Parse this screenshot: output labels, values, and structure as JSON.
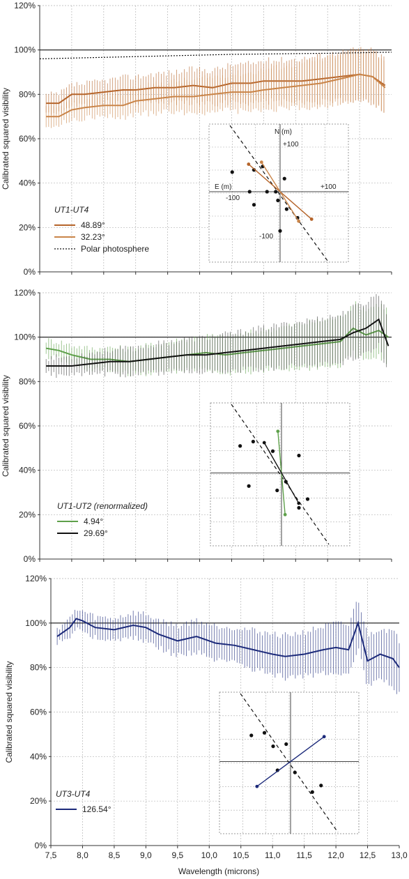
{
  "colors": {
    "orange_dark": "#b5642a",
    "orange_light": "#c98448",
    "green": "#5ea04a",
    "black": "#111111",
    "navy": "#1c2a7a",
    "grey_error": "#b8b8b8",
    "grid": "#b4b4b4"
  },
  "chart_data": [
    {
      "type": "line",
      "xlabel": "",
      "ylabel": "Calibrated squared visibility",
      "xlim": [
        7.5,
        13.0
      ],
      "ylim": [
        0,
        120
      ],
      "y_ticks": [
        "0%",
        "20%",
        "40%",
        "60%",
        "80%",
        "100%",
        "120%"
      ],
      "reference_line": 100,
      "legend_title": "UT1-UT4",
      "series": [
        {
          "name": "48.89°",
          "color": "#b5642a",
          "x": [
            7.6,
            7.8,
            8.0,
            8.2,
            8.5,
            8.8,
            9.0,
            9.3,
            9.6,
            9.9,
            10.2,
            10.5,
            10.8,
            11.0,
            11.3,
            11.6,
            11.9,
            12.2,
            12.5,
            12.7,
            12.9
          ],
          "values": [
            76,
            76,
            80,
            80,
            81,
            82,
            82,
            83,
            83,
            84,
            83,
            85,
            85,
            86,
            86,
            86,
            87,
            88,
            89,
            88,
            84
          ]
        },
        {
          "name": "32.23°",
          "color": "#c98448",
          "x": [
            7.6,
            7.8,
            8.0,
            8.2,
            8.5,
            8.8,
            9.0,
            9.3,
            9.6,
            9.9,
            10.2,
            10.5,
            10.8,
            11.0,
            11.3,
            11.6,
            11.9,
            12.2,
            12.5,
            12.7,
            12.9
          ],
          "values": [
            70,
            70,
            73,
            74,
            75,
            75,
            77,
            78,
            79,
            79,
            80,
            81,
            81,
            82,
            83,
            84,
            85,
            87,
            89,
            88,
            83
          ]
        },
        {
          "name": "Polar photosphere",
          "color": "#111111",
          "dashed": true,
          "x": [
            7.5,
            9.0,
            10.5,
            12.0,
            13.0
          ],
          "values": [
            96,
            97,
            98,
            98.5,
            99
          ]
        }
      ],
      "inset": {
        "axis_labels": [
          "N (m)",
          "E (m)"
        ],
        "tick_labels": [
          "+100",
          "-100",
          "+100",
          "-100"
        ],
        "points": [
          [
            -70,
            0
          ],
          [
            -40,
            58
          ],
          [
            -60,
            50
          ],
          [
            -110,
            45
          ],
          [
            10,
            30
          ],
          [
            -10,
            0
          ],
          [
            -5,
            -20
          ],
          [
            -30,
            0
          ],
          [
            -60,
            -30
          ],
          [
            15,
            -40
          ],
          [
            40,
            -60
          ],
          [
            0,
            -90
          ]
        ]
      }
    },
    {
      "type": "line",
      "xlabel": "",
      "ylabel": "Calibrated squared visibility",
      "xlim": [
        7.5,
        13.0
      ],
      "ylim": [
        0,
        120
      ],
      "y_ticks": [
        "0%",
        "20%",
        "40%",
        "60%",
        "80%",
        "100%",
        "120%"
      ],
      "reference_line": 100,
      "legend_title": "UT1-UT2  (renormalized)",
      "series": [
        {
          "name": "4.94°",
          "color": "#5ea04a",
          "x": [
            7.6,
            7.8,
            8.0,
            8.3,
            8.6,
            8.9,
            9.2,
            9.5,
            9.8,
            10.1,
            10.4,
            10.7,
            11.0,
            11.3,
            11.6,
            11.9,
            12.2,
            12.4,
            12.6,
            12.8,
            12.95
          ],
          "values": [
            95,
            94,
            92,
            90,
            90,
            89,
            90,
            91,
            92,
            93,
            92,
            93,
            94,
            95,
            96,
            97,
            98,
            104,
            101,
            103,
            100
          ]
        },
        {
          "name": "29.69°",
          "color": "#111111",
          "x": [
            7.6,
            7.8,
            8.0,
            8.3,
            8.6,
            8.9,
            9.2,
            9.5,
            9.8,
            10.1,
            10.4,
            10.7,
            11.0,
            11.3,
            11.6,
            11.9,
            12.2,
            12.4,
            12.6,
            12.8,
            12.95
          ],
          "values": [
            87,
            87,
            87,
            88,
            89,
            89,
            90,
            91,
            92,
            92,
            93,
            94,
            95,
            96,
            97,
            98,
            99,
            102,
            104,
            108,
            96
          ]
        }
      ],
      "inset": {
        "points": [
          [
            -95,
            62
          ],
          [
            -65,
            72
          ],
          [
            -20,
            50
          ],
          [
            -75,
            -30
          ],
          [
            40,
            40
          ],
          [
            10,
            -20
          ],
          [
            60,
            -60
          ],
          [
            40,
            -80
          ],
          [
            -10,
            -40
          ]
        ]
      }
    },
    {
      "type": "line",
      "xlabel": "Wavelength (microns)",
      "ylabel": "Calibrated squared visibility",
      "xlim": [
        7.5,
        13.0
      ],
      "ylim": [
        0,
        120
      ],
      "x_ticks": [
        "7,5",
        "8,0",
        "8,5",
        "9,0",
        "9,5",
        "10,0",
        "10,5",
        "11,0",
        "11,5",
        "12,0",
        "12,5",
        "13,0"
      ],
      "y_ticks": [
        "0%",
        "20%",
        "40%",
        "60%",
        "80%",
        "100%",
        "120%"
      ],
      "reference_line": 100,
      "legend_title": "UT3-UT4",
      "series": [
        {
          "name": "126.54°",
          "color": "#1c2a7a",
          "x": [
            7.6,
            7.8,
            7.9,
            8.0,
            8.2,
            8.5,
            8.8,
            9.0,
            9.2,
            9.5,
            9.8,
            10.1,
            10.4,
            10.7,
            11.0,
            11.2,
            11.5,
            11.8,
            12.0,
            12.2,
            12.35,
            12.5,
            12.7,
            12.9,
            13.0
          ],
          "values": [
            94,
            98,
            102,
            101,
            98,
            97,
            99,
            98,
            95,
            92,
            94,
            91,
            90,
            88,
            86,
            85,
            86,
            88,
            89,
            88,
            100,
            83,
            86,
            84,
            80
          ]
        }
      ],
      "inset": {
        "points": [
          [
            -90,
            60
          ],
          [
            -60,
            66
          ],
          [
            -40,
            35
          ],
          [
            -10,
            40
          ],
          [
            -30,
            -20
          ],
          [
            10,
            -25
          ],
          [
            50,
            -70
          ],
          [
            70,
            -55
          ]
        ]
      }
    }
  ]
}
